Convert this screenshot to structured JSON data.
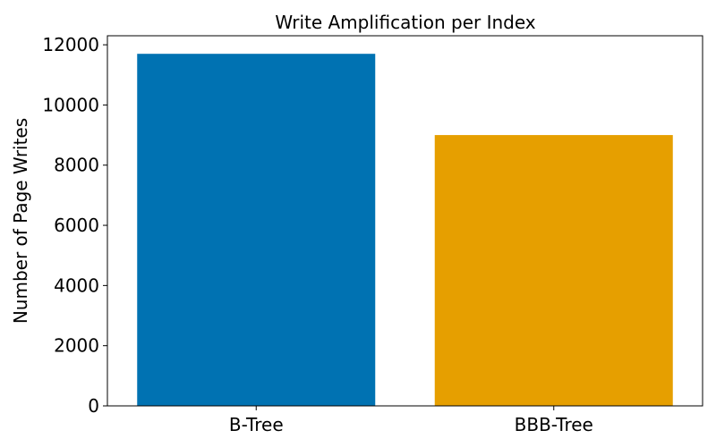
{
  "chart_data": {
    "type": "bar",
    "title": "Write Amplification per Index",
    "xlabel": "",
    "ylabel": "Number of Page Writes",
    "categories": [
      "B-Tree",
      "BBB-Tree"
    ],
    "values": [
      11700,
      9000
    ],
    "colors": [
      "#0072B2",
      "#E69F00"
    ],
    "ylim": [
      0,
      12300
    ],
    "yticks": [
      0,
      2000,
      4000,
      6000,
      8000,
      10000,
      12000
    ],
    "grid": false,
    "legend": "none"
  }
}
